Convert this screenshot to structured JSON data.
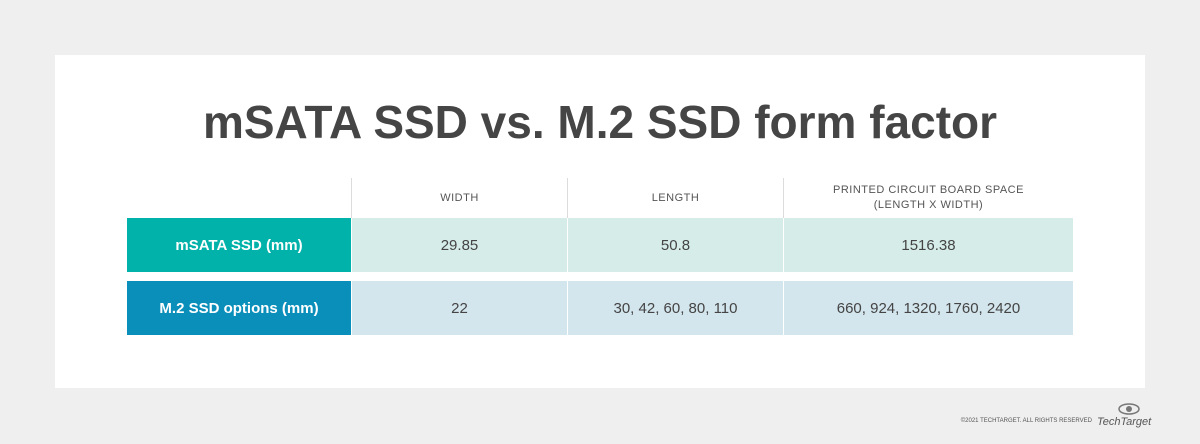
{
  "title": "mSATA SSD vs. M.2 SSD form factor",
  "table": {
    "headers": [
      [
        "WIDTH"
      ],
      [
        "LENGTH"
      ],
      [
        "PRINTED CIRCUIT BOARD SPACE",
        "(LENGTH X WIDTH)"
      ]
    ],
    "rows": [
      [
        "mSATA SSD (mm)",
        "29.85",
        "50.8",
        "1516.38"
      ],
      [
        "M.2 SSD options (mm)",
        "22",
        "30, 42, 60, 80, 110",
        "660, 924, 1320, 1760, 2420"
      ]
    ]
  },
  "footer": {
    "copyright": "©2021 TECHTARGET. ALL RIGHTS RESERVED",
    "logo": "TechTarget"
  }
}
